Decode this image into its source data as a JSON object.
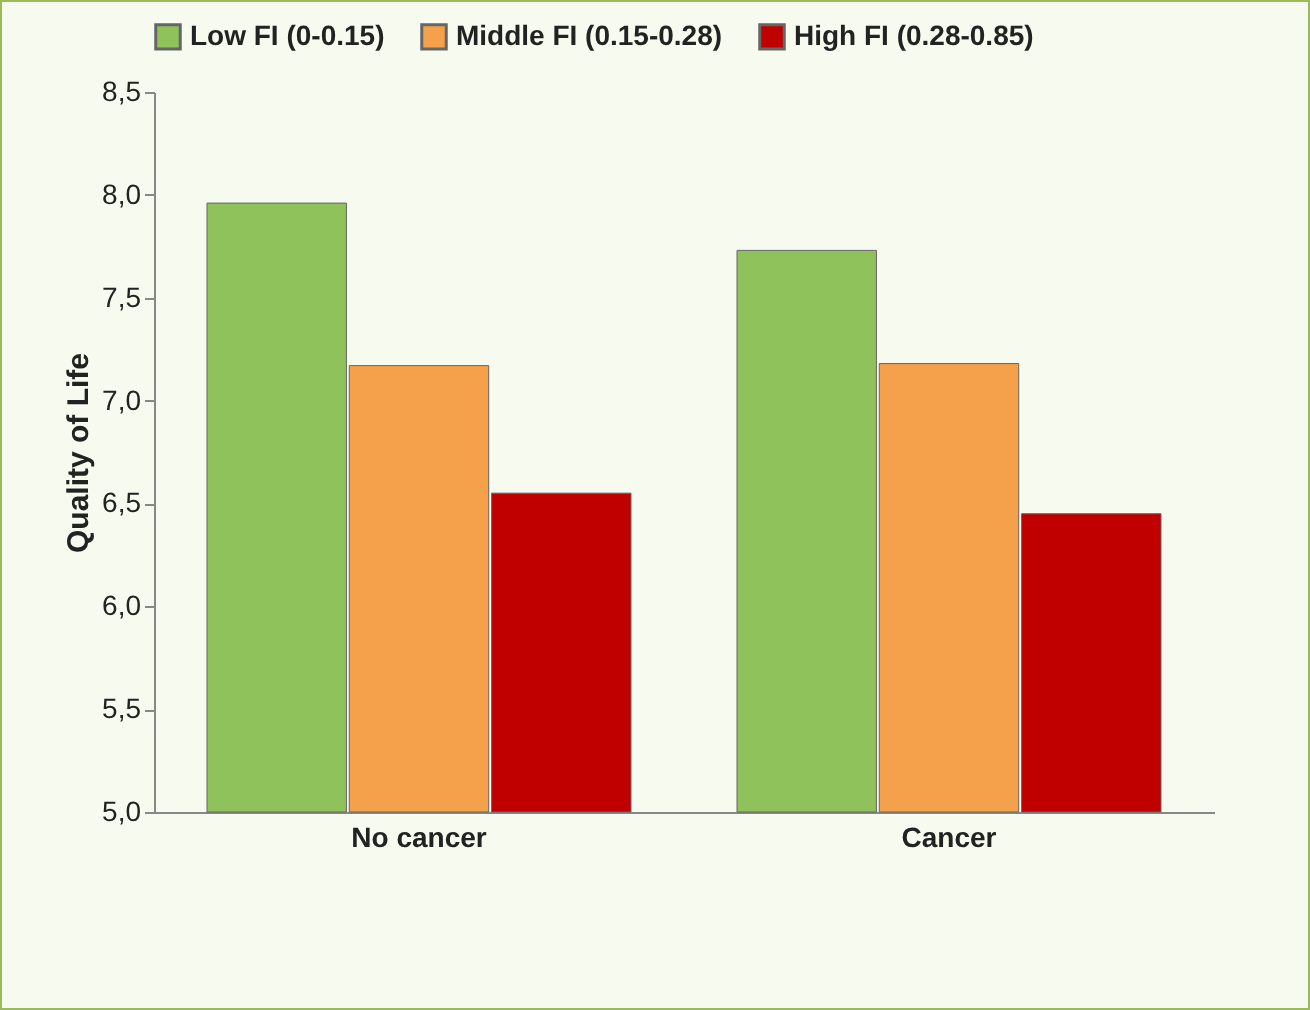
{
  "chart_data": {
    "type": "bar",
    "ylabel": "Quality of Life",
    "categories": [
      "No cancer",
      "Cancer"
    ],
    "series": [
      {
        "name": "Low FI (0-0.15)",
        "color": "#8fc25a",
        "values": [
          7.96,
          7.73
        ]
      },
      {
        "name": "Middle FI (0.15-0.28)",
        "color": "#f5a04a",
        "values": [
          7.17,
          7.18
        ]
      },
      {
        "name": "High FI (0.28-0.85)",
        "color": "#c00000",
        "values": [
          6.55,
          6.45
        ]
      }
    ],
    "ylim": [
      5,
      8.5
    ],
    "yticks": [
      {
        "value": 5,
        "label": "5,0"
      },
      {
        "value": 5.5,
        "label": "5,5"
      },
      {
        "value": 6,
        "label": "6,0"
      },
      {
        "value": 6.5,
        "label": "6,5"
      },
      {
        "value": 7,
        "label": "7,0"
      },
      {
        "value": 7.5,
        "label": "7,5"
      },
      {
        "value": 8,
        "label": "8,0"
      },
      {
        "value": 8.5,
        "label": "8,5"
      }
    ],
    "grid": false,
    "legend": "top"
  }
}
